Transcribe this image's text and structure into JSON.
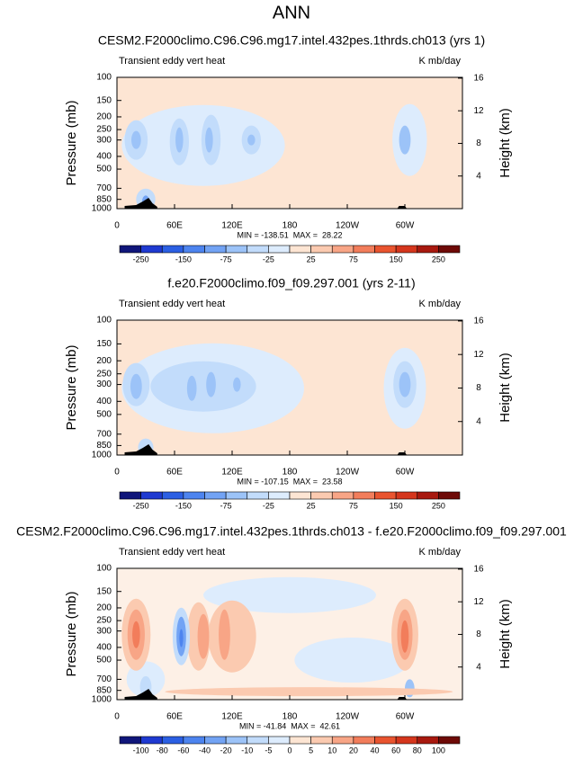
{
  "title": "ANN",
  "panels": [
    {
      "title": "CESM2.F2000climo.C96.C96.mg17.intel.432pes.1thrds.ch013 (yrs 1)",
      "left_label": "Transient eddy vert heat",
      "right_label": "K mb/day",
      "ylabel": "Pressure (mb)",
      "y2label": "Height (km)",
      "ylim": [
        1000,
        100
      ],
      "yscale": "log",
      "yticks": [
        100,
        150,
        200,
        250,
        300,
        400,
        500,
        700,
        850,
        1000
      ],
      "y2lim": [
        0,
        16.1
      ],
      "y2ticks": [
        4,
        8,
        12,
        16
      ],
      "xlim": [
        0,
        360
      ],
      "xticks": [
        0,
        {
          "value": 60,
          "label": "60E"
        },
        {
          "value": 120,
          "label": "120E"
        },
        180,
        {
          "value": 240,
          "label": "120W"
        },
        {
          "value": 300,
          "label": "60W"
        }
      ],
      "stats": "MIN = -138.51  MAX =  28.22",
      "colorbar": {
        "colors": [
          "#10167a",
          "#1f3ad1",
          "#2b5fe3",
          "#4d84ef",
          "#72a3f4",
          "#9cc3f8",
          "#c2dcfb",
          "#ddecfd",
          "#fde5d3",
          "#fbcab0",
          "#f8a586",
          "#f27d5b",
          "#e9542f",
          "#d5361d",
          "#a8190f",
          "#6e0a07"
        ],
        "ticks": [
          -250,
          -150,
          -75,
          -25,
          25,
          75,
          150,
          250
        ]
      }
    },
    {
      "title": "f.e20.F2000climo.f09_f09.297.001 (yrs 2-11)",
      "left_label": "Transient eddy vert heat",
      "right_label": "K mb/day",
      "ylabel": "Pressure (mb)",
      "y2label": "Height (km)",
      "ylim": [
        1000,
        100
      ],
      "yscale": "log",
      "yticks": [
        100,
        150,
        200,
        250,
        300,
        400,
        500,
        700,
        850,
        1000
      ],
      "y2lim": [
        0,
        16.1
      ],
      "y2ticks": [
        4,
        8,
        12,
        16
      ],
      "xlim": [
        0,
        360
      ],
      "xticks": [
        0,
        {
          "value": 60,
          "label": "60E"
        },
        {
          "value": 120,
          "label": "120E"
        },
        180,
        {
          "value": 240,
          "label": "120W"
        },
        {
          "value": 300,
          "label": "60W"
        }
      ],
      "stats": "MIN = -107.15  MAX =  23.58",
      "colorbar": {
        "colors": [
          "#10167a",
          "#1f3ad1",
          "#2b5fe3",
          "#4d84ef",
          "#72a3f4",
          "#9cc3f8",
          "#c2dcfb",
          "#ddecfd",
          "#fde5d3",
          "#fbcab0",
          "#f8a586",
          "#f27d5b",
          "#e9542f",
          "#d5361d",
          "#a8190f",
          "#6e0a07"
        ],
        "ticks": [
          -250,
          -150,
          -75,
          -25,
          25,
          75,
          150,
          250
        ]
      }
    },
    {
      "title": "CESM2.F2000climo.C96.C96.mg17.intel.432pes.1thrds.ch013 - f.e20.F2000climo.f09_f09.297.001",
      "left_label": "Transient eddy vert heat",
      "right_label": "K mb/day",
      "ylabel": "Pressure (mb)",
      "y2label": "Height (km)",
      "ylim": [
        1000,
        100
      ],
      "yscale": "log",
      "yticks": [
        100,
        150,
        200,
        250,
        300,
        400,
        500,
        700,
        850,
        1000
      ],
      "y2lim": [
        0,
        16.1
      ],
      "y2ticks": [
        4,
        8,
        12,
        16
      ],
      "xlim": [
        0,
        360
      ],
      "xticks": [
        0,
        {
          "value": 60,
          "label": "60E"
        },
        {
          "value": 120,
          "label": "120E"
        },
        180,
        {
          "value": 240,
          "label": "120W"
        },
        {
          "value": 300,
          "label": "60W"
        }
      ],
      "stats": "MIN = -41.84  MAX =  42.61",
      "colorbar": {
        "colors": [
          "#10167a",
          "#1f3ad1",
          "#2b5fe3",
          "#4d84ef",
          "#72a3f4",
          "#9cc3f8",
          "#c2dcfb",
          "#ddecfd",
          "#fde5d3",
          "#fbcab0",
          "#f8a586",
          "#f27d5b",
          "#e9542f",
          "#d5361d",
          "#a8190f",
          "#6e0a07"
        ],
        "ticks": [
          -100,
          -80,
          -60,
          -40,
          -20,
          -10,
          -5,
          0,
          5,
          10,
          20,
          40,
          60,
          80,
          100
        ]
      }
    }
  ]
}
